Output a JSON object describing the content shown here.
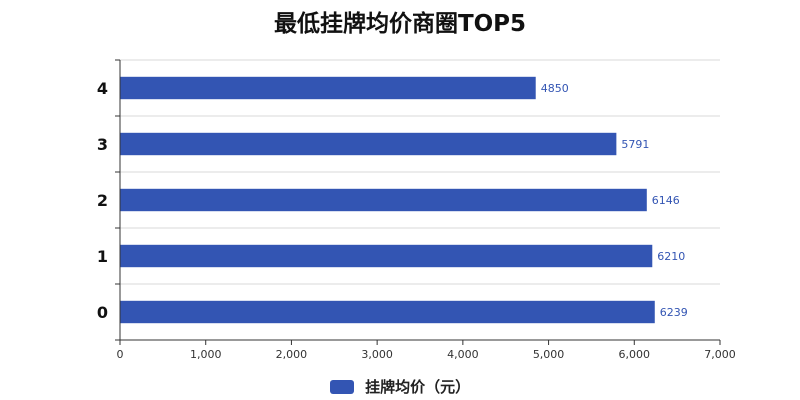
{
  "chart_data": {
    "type": "bar",
    "orientation": "horizontal",
    "title": "最低挂牌均价商圈TOP5",
    "categories": [
      "0",
      "1",
      "2",
      "3",
      "4"
    ],
    "series": [
      {
        "name": "挂牌均价（元）",
        "values": [
          6239,
          6210,
          6146,
          5791,
          4850
        ],
        "color": "#3355b3"
      }
    ],
    "xlim": [
      0,
      7000
    ],
    "x_ticks": [
      0,
      1000,
      2000,
      3000,
      4000,
      5000,
      6000,
      7000
    ],
    "x_tick_labels": [
      "0",
      "1,000",
      "2,000",
      "3,000",
      "4,000",
      "5,000",
      "6,000",
      "7,000"
    ],
    "grid": "horizontal",
    "legend_position": "bottom",
    "data_labels": true
  }
}
